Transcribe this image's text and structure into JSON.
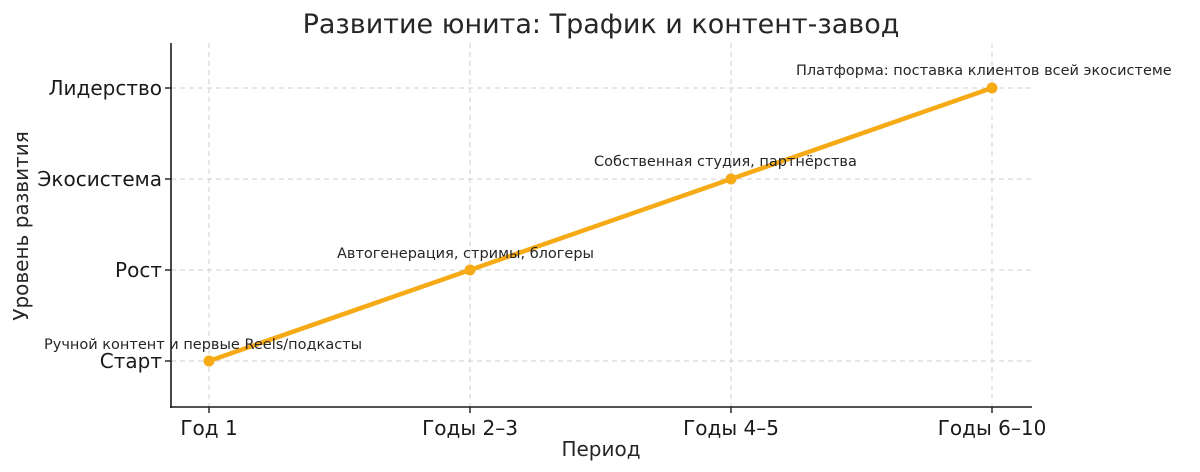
{
  "chart_data": {
    "type": "line",
    "title": "Развитие юнита: Трафик и контент-завод",
    "xlabel": "Период",
    "ylabel": "Уровень развития",
    "categories": [
      "Год 1",
      "Годы 2–3",
      "Годы 4–5",
      "Годы 6–10"
    ],
    "y_levels": [
      "Старт",
      "Рост",
      "Экосистема",
      "Лидерство"
    ],
    "series": [
      {
        "values": [
          0,
          1,
          2,
          3
        ],
        "color": "#f5aa16",
        "marker": "circle"
      }
    ],
    "annotations": [
      "Ручной контент и первые Reels/подкасты",
      "Автогенерация, стримы, блогеры",
      "Собственная студия, партнёрства",
      "Платформа: поставка клиентов всей экосистеме"
    ],
    "grid": true,
    "legend": "none"
  }
}
